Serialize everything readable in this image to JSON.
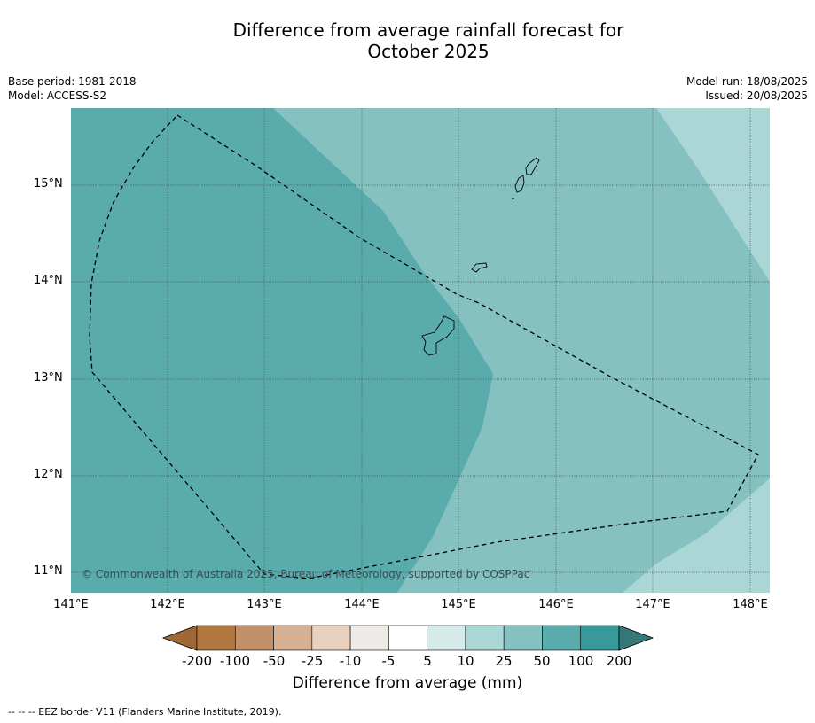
{
  "title_line1": "Difference from average rainfall forecast for",
  "title_line2": "October 2025",
  "base_period": "Base period: 1981-2018",
  "model": "Model: ACCESS-S2",
  "model_run": "Model run: 18/08/2025",
  "issued": "Issued: 20/08/2025",
  "lat_labels": [
    "15°N",
    "14°N",
    "13°N",
    "12°N",
    "11°N"
  ],
  "lon_labels": [
    "141°E",
    "142°E",
    "143°E",
    "144°E",
    "145°E",
    "146°E",
    "147°E",
    "148°E"
  ],
  "copyright": "© Commonwealth of Australia 2025, Bureau of Meteorology, supported by COSPPac",
  "colorbar": {
    "title": "Difference from average (mm)",
    "labels": [
      "-200",
      "-100",
      "-50",
      "-25",
      "-10",
      "-5",
      "5",
      "10",
      "25",
      "50",
      "100",
      "200"
    ],
    "colors": [
      "#9e6836",
      "#b07840",
      "#c0916a",
      "#d5b093",
      "#e8d1be",
      "#eeeae6",
      "#ffffff",
      "#d5ebe9",
      "#abd6d6",
      "#84c1c0",
      "#5aacac",
      "#369a9a",
      "#347878"
    ]
  },
  "legend_footer": "--  --  -- EEZ border V11 (Flanders Marine Institute, 2019).",
  "map_colors": {
    "band_50_100": "#5aacac",
    "band_25_50": "#84c1c0",
    "band_10_25": "#abd6d6"
  }
}
